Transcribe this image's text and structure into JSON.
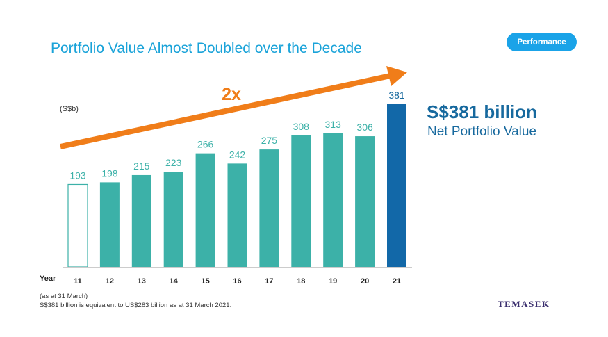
{
  "header": {
    "title": "Portfolio Value Almost Doubled over the Decade",
    "badge": "Performance"
  },
  "highlight": {
    "value": "S$381 billion",
    "label": "Net Portfolio Value"
  },
  "footnotes": {
    "line1": "(as at 31 March)",
    "line2": "S$381 billion is equivalent to US$283 billion as at 31 March 2021."
  },
  "logo": "TEMASEK",
  "colors": {
    "bar": "#3cb1a8",
    "bar_first_outline": "#3cb1a8",
    "bar_latest": "#1268a8",
    "label": "#3cb1a8",
    "label_latest": "#17699e",
    "arrow": "#f07d19"
  },
  "chart_data": {
    "type": "bar",
    "xlabel": "Year",
    "ylabel": "(S$b)",
    "categories": [
      "11",
      "12",
      "13",
      "14",
      "15",
      "16",
      "17",
      "18",
      "19",
      "20",
      "21"
    ],
    "values": [
      193,
      198,
      215,
      223,
      266,
      242,
      275,
      308,
      313,
      306,
      381
    ],
    "ylim": [
      0,
      381
    ],
    "grid": false,
    "annotation": "2x"
  }
}
